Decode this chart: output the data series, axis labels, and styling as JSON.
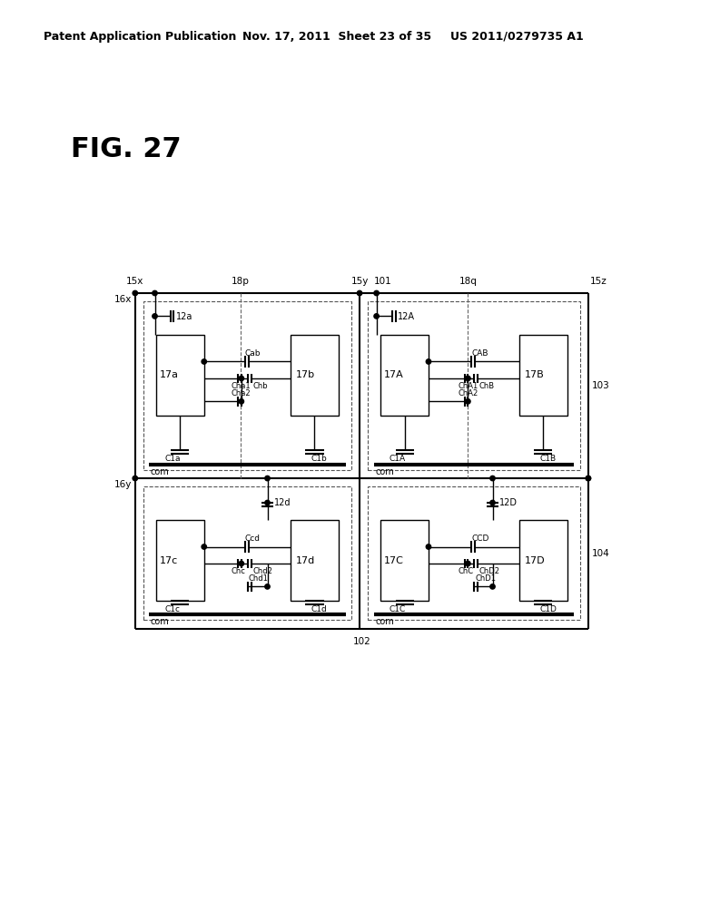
{
  "bg_color": "#ffffff",
  "header_left": "Patent Application Publication",
  "header_mid": "Nov. 17, 2011  Sheet 23 of 35",
  "header_right": "US 2011/0279735 A1",
  "fig_label": "FIG. 27",
  "line_color": "#000000",
  "dot_color": "#000000"
}
